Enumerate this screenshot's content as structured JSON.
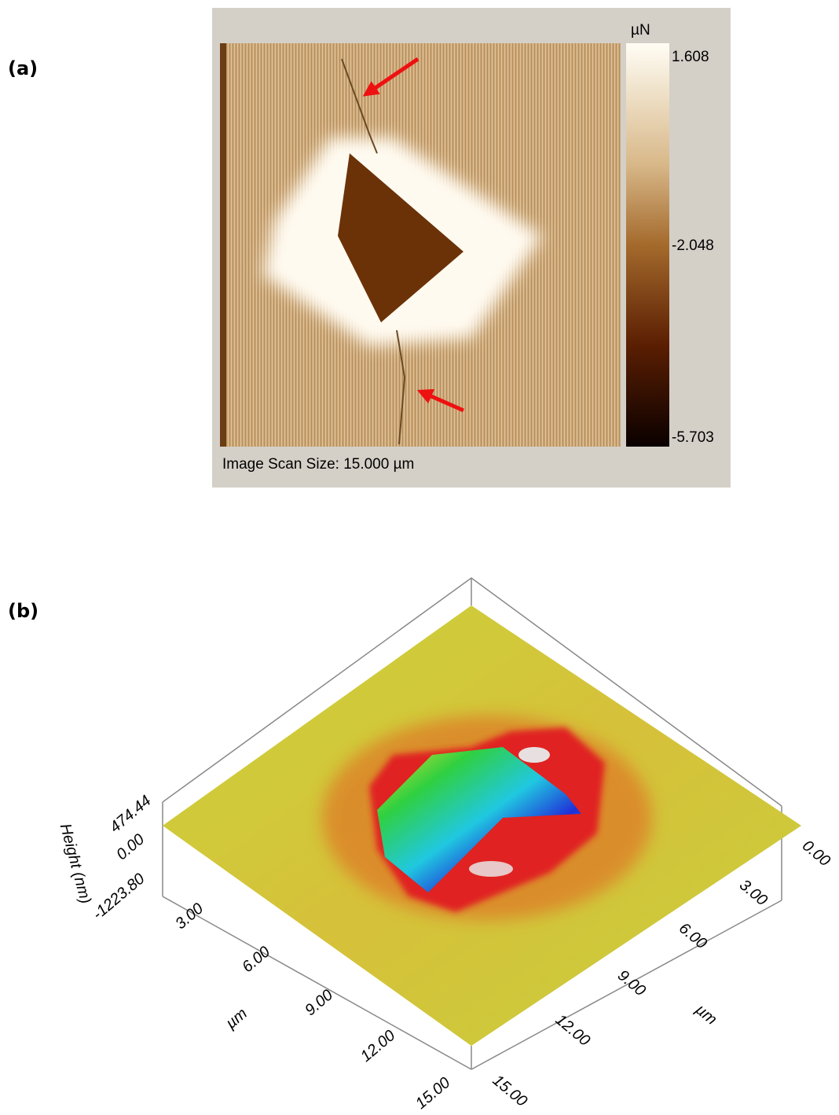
{
  "panel_a": {
    "label": "(a)",
    "colorbar": {
      "unit": "µN",
      "max": "1.608",
      "mid": "-2.048",
      "min": "-5.703"
    },
    "caption": "Image Scan Size: 15.000 µm"
  },
  "panel_b": {
    "label": "(b)",
    "height_axis": {
      "title": "Height (nm)",
      "ticks": [
        "474.44",
        "0.00",
        "-1223.80"
      ]
    },
    "x_axis": {
      "title": "µm",
      "ticks": [
        "3.00",
        "6.00",
        "9.00",
        "12.00",
        "15.00"
      ]
    },
    "y_axis": {
      "title": "µm",
      "ticks": [
        "0.00",
        "3.00",
        "6.00",
        "9.00",
        "12.00",
        "15.00"
      ]
    }
  }
}
